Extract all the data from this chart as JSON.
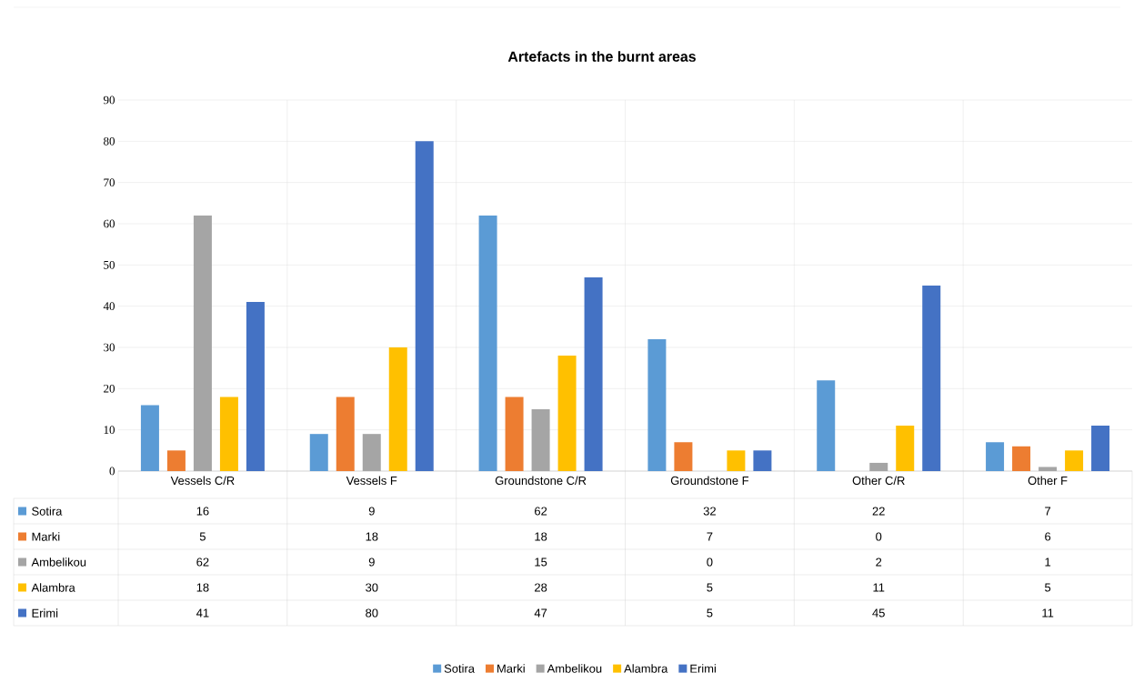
{
  "chart_data": {
    "type": "bar",
    "title": "Artefacts in the burnt areas",
    "categories": [
      "Vessels C/R",
      "Vessels F",
      "Groundstone C/R",
      "Groundstone F",
      "Other C/R",
      "Other F"
    ],
    "series": [
      {
        "name": "Sotira",
        "color": "#5b9bd5",
        "values": [
          16,
          9,
          62,
          32,
          22,
          7
        ]
      },
      {
        "name": "Marki",
        "color": "#ed7d31",
        "values": [
          5,
          18,
          18,
          7,
          0,
          6
        ]
      },
      {
        "name": "Ambelikou",
        "color": "#a5a5a5",
        "values": [
          62,
          9,
          15,
          0,
          2,
          1
        ]
      },
      {
        "name": "Alambra",
        "color": "#ffc000",
        "values": [
          18,
          30,
          28,
          5,
          11,
          5
        ]
      },
      {
        "name": "Erimi",
        "color": "#4472c4",
        "values": [
          41,
          80,
          47,
          5,
          45,
          11
        ]
      }
    ],
    "ylim": [
      0,
      90
    ],
    "yticks": [
      0,
      10,
      20,
      30,
      40,
      50,
      60,
      70,
      80,
      90
    ],
    "grid": true,
    "legend": "bottom",
    "data_labels": true
  }
}
